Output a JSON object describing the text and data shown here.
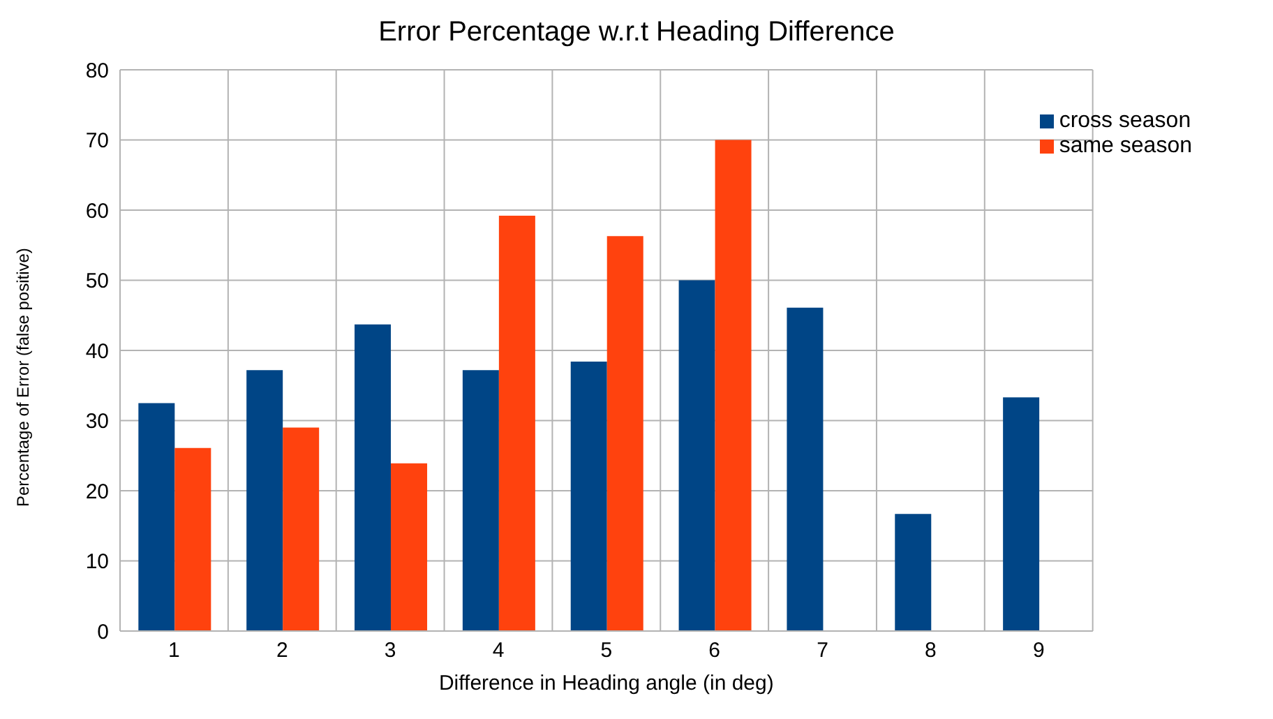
{
  "chart_data": {
    "type": "bar",
    "title": "Error Percentage w.r.t Heading Difference",
    "xlabel": "Difference in Heading angle (in deg)",
    "ylabel": "Percentage of Error (false positive)",
    "categories": [
      "1",
      "2",
      "3",
      "4",
      "5",
      "6",
      "7",
      "8",
      "9"
    ],
    "series": [
      {
        "name": "cross season",
        "color": "#004586",
        "values": [
          32.5,
          37.2,
          43.7,
          37.2,
          38.4,
          50,
          46.1,
          16.7,
          33.3
        ]
      },
      {
        "name": "same season",
        "color": "#ff420e",
        "values": [
          26.1,
          29.0,
          23.9,
          59.2,
          56.3,
          70,
          null,
          null,
          null
        ]
      }
    ],
    "ylim": [
      0,
      80
    ],
    "yticks": [
      0,
      10,
      20,
      30,
      40,
      50,
      60,
      70,
      80
    ],
    "grid": true,
    "legend": "top right"
  }
}
